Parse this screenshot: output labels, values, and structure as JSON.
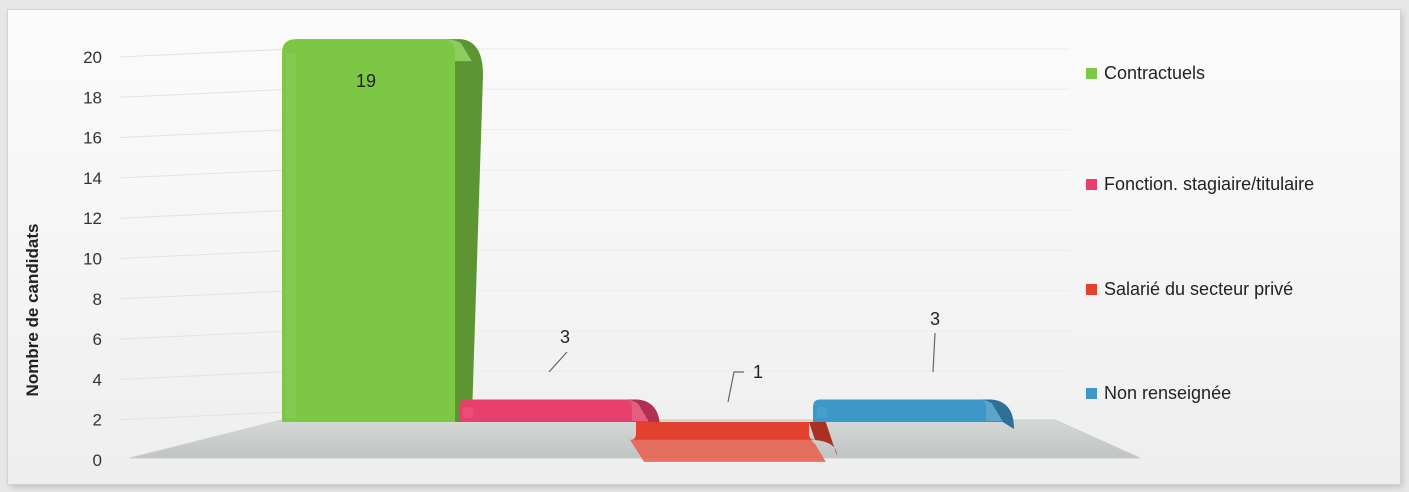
{
  "chart_data": {
    "type": "bar",
    "ylabel": "Nombre de candidats",
    "xlabel": "",
    "ylim": [
      0,
      20
    ],
    "yticks": [
      0,
      2,
      4,
      6,
      8,
      10,
      12,
      14,
      16,
      18,
      20
    ],
    "legend_position": "right",
    "series": [
      {
        "name": "Contractuels",
        "value": 19,
        "label": "19",
        "color": "#7cc743"
      },
      {
        "name": "Fonction. stagiaire/titulaire",
        "value": 3,
        "label": "3",
        "color": "#e8406d"
      },
      {
        "name": "Salarié du secteur privé",
        "value": 1,
        "label": "1",
        "color": "#e2412d"
      },
      {
        "name": "Non renseignée",
        "value": 3,
        "label": "3",
        "color": "#3d97c8"
      }
    ]
  }
}
